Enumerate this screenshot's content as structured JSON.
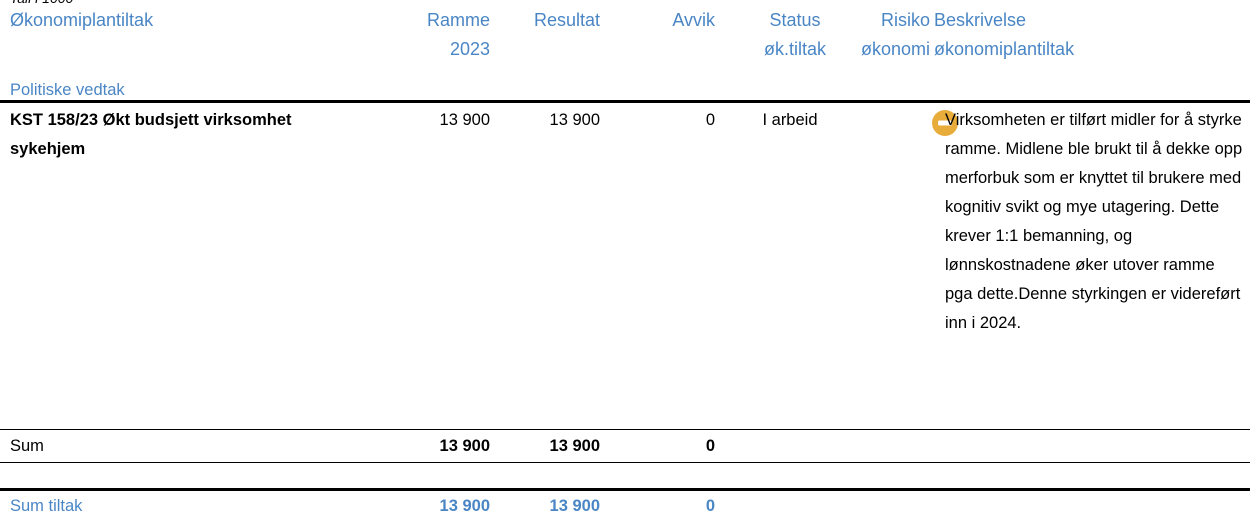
{
  "caption": "Tall i 1000",
  "header": {
    "columns": [
      "Økonomiplantiltak",
      "Ramme 2023",
      "Resultat",
      "Avvik",
      "Status øk.tiltak",
      "Risiko økonomi",
      "Beskrivelse økonomiplantiltak"
    ]
  },
  "section": "Politiske vedtak",
  "rows": [
    {
      "name": "KST 158/23 Økt budsjett virksomhet sykehjem",
      "ramme": "13 900",
      "resultat": "13 900",
      "avvik": "0",
      "status": "I arbeid",
      "description": "Virksomheten er tilført midler for å styrke ramme. Midlene ble brukt til å dekke opp merforbuk som er knyttet til brukere med kognitiv svikt og mye utagering. Dette krever 1:1 bemanning, og lønnskostnadene øker utover ramme pga dette.Denne styrkingen er videreført inn i 2024."
    }
  ],
  "sum": {
    "label": "Sum",
    "ramme": "13 900",
    "resultat": "13 900",
    "avvik": "0"
  },
  "total": {
    "label": "Sum tiltak",
    "ramme": "13 900",
    "resultat": "13 900",
    "avvik": "0"
  }
}
